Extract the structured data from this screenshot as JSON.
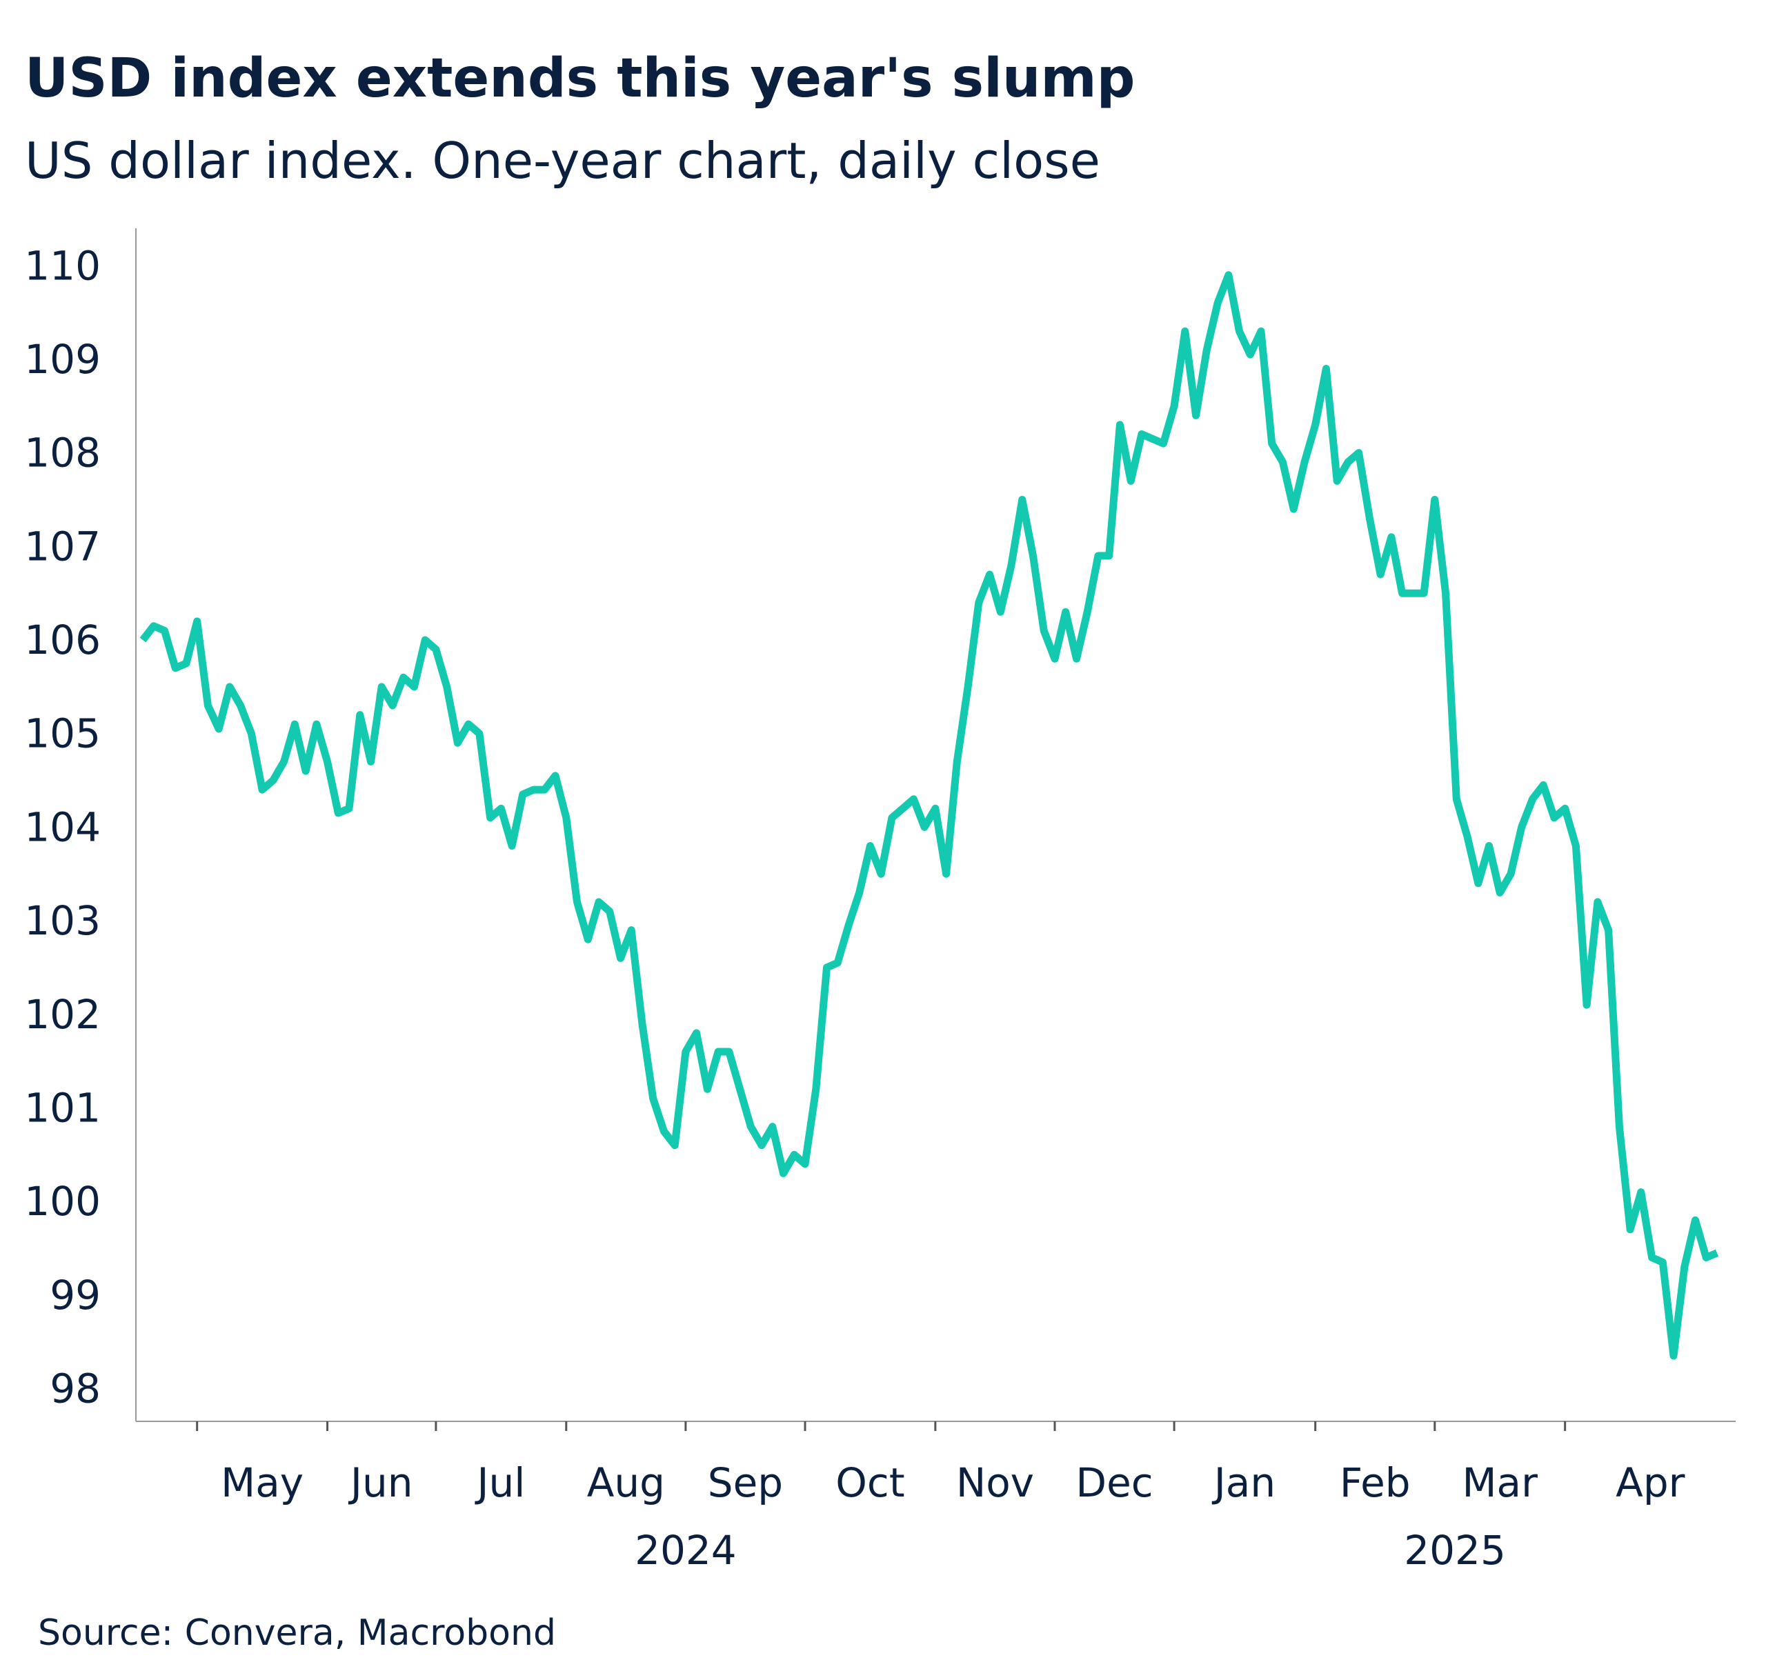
{
  "chart_data": {
    "type": "line",
    "title": "USD index extends this year's slump",
    "subtitle": "US dollar index. One-year chart, daily close",
    "source": "Source: Convera, Macrobond",
    "categories": [
      null,
      null,
      null,
      null,
      null,
      "May",
      null,
      null,
      null,
      null,
      null,
      null,
      null,
      null,
      null,
      null,
      null,
      "Jun",
      null,
      null,
      null,
      null,
      null,
      null,
      null,
      null,
      null,
      "Jul",
      null,
      null,
      null,
      null,
      null,
      null,
      null,
      null,
      null,
      null,
      null,
      "Aug",
      null,
      null,
      null,
      null,
      null,
      null,
      null,
      null,
      null,
      null,
      "Sep",
      null,
      null,
      null,
      null,
      null,
      null,
      null,
      null,
      null,
      null,
      "Oct",
      null,
      null,
      null,
      null,
      null,
      null,
      null,
      null,
      null,
      null,
      null,
      "Nov",
      null,
      null,
      null,
      null,
      null,
      null,
      null,
      null,
      null,
      null,
      "Dec",
      null,
      null,
      null,
      null,
      null,
      null,
      null,
      null,
      null,
      null,
      "Jan",
      null,
      null,
      null,
      null,
      null,
      null,
      null,
      null,
      null,
      null,
      null,
      null,
      "Feb",
      null,
      null,
      null,
      null,
      null,
      null,
      null,
      null,
      null,
      null,
      "Mar",
      null,
      null,
      null,
      null,
      null,
      null,
      null,
      null,
      null,
      null,
      null,
      "Apr",
      null,
      null,
      null,
      null,
      null,
      null,
      null,
      null,
      null,
      null,
      null,
      null,
      null,
      null
    ],
    "x_groups": [
      {
        "label": "2024",
        "first": "May"
      },
      {
        "label": "2025",
        "first": "Jan"
      }
    ],
    "series": [
      {
        "name": "US dollar index",
        "color": "#13c9b0",
        "values": [
          106.0,
          106.15,
          106.1,
          105.7,
          105.75,
          106.2,
          105.3,
          105.05,
          105.5,
          105.3,
          105.0,
          104.4,
          104.5,
          104.7,
          105.1,
          104.6,
          105.1,
          104.7,
          104.15,
          104.2,
          105.2,
          104.7,
          105.5,
          105.3,
          105.6,
          105.5,
          106.0,
          105.9,
          105.5,
          104.9,
          105.1,
          105.0,
          104.1,
          104.2,
          103.8,
          104.35,
          104.4,
          104.4,
          104.55,
          104.1,
          103.2,
          102.8,
          103.2,
          103.1,
          102.6,
          102.9,
          101.9,
          101.1,
          100.75,
          100.6,
          101.6,
          101.8,
          101.2,
          101.6,
          101.6,
          101.2,
          100.8,
          100.6,
          100.8,
          100.3,
          100.5,
          100.4,
          101.2,
          102.5,
          102.55,
          102.95,
          103.3,
          103.8,
          103.5,
          104.1,
          104.2,
          104.3,
          104.0,
          104.2,
          103.5,
          104.7,
          105.5,
          106.4,
          106.7,
          106.3,
          106.8,
          107.5,
          106.9,
          106.1,
          105.8,
          106.3,
          105.8,
          106.3,
          106.9,
          106.9,
          108.3,
          107.7,
          108.2,
          108.15,
          108.1,
          108.5,
          109.3,
          108.4,
          109.1,
          109.6,
          109.9,
          109.3,
          109.05,
          109.3,
          108.1,
          107.9,
          107.4,
          107.9,
          108.3,
          108.9,
          107.7,
          107.9,
          108.0,
          107.3,
          106.7,
          107.1,
          106.5,
          106.5,
          106.5,
          107.5,
          106.5,
          104.3,
          103.9,
          103.4,
          103.8,
          103.3,
          103.5,
          104.0,
          104.3,
          104.45,
          104.1,
          104.2,
          103.8,
          102.1,
          103.2,
          102.9,
          100.8,
          99.7,
          100.1,
          99.4,
          99.35,
          98.35,
          99.3,
          99.8,
          99.4,
          99.45
        ]
      }
    ],
    "ylim": [
      97.65,
      110.4
    ],
    "yticks": [
      98,
      99,
      100,
      101,
      102,
      103,
      104,
      105,
      106,
      107,
      108,
      109,
      110
    ],
    "grid": false
  }
}
